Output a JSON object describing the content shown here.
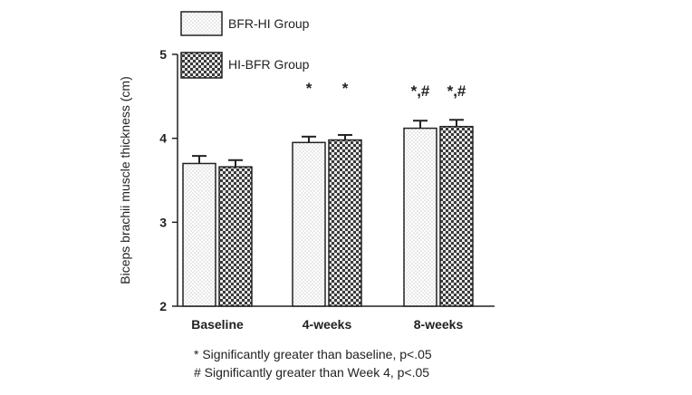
{
  "chart_data": {
    "type": "bar",
    "ylabel": "Biceps brachii muscle thickness (cm)",
    "xlabel": "",
    "ylim": [
      2,
      5
    ],
    "yticks": [
      "2",
      "3",
      "4",
      "5"
    ],
    "categories": [
      "Baseline",
      "4-weeks",
      "8-weeks"
    ],
    "series": [
      {
        "name": "BFR-HI Group",
        "pattern": "dotted",
        "values": [
          3.7,
          3.95,
          4.12
        ],
        "errors": [
          0.09,
          0.07,
          0.09
        ]
      },
      {
        "name": "HI-BFR Group",
        "pattern": "checkered",
        "values": [
          3.66,
          3.98,
          4.14
        ],
        "errors": [
          0.08,
          0.06,
          0.08
        ]
      }
    ],
    "annotations": [
      [
        "",
        ""
      ],
      [
        "*",
        "*"
      ],
      [
        "*,#",
        "*,#"
      ]
    ],
    "legend_position": "top-left",
    "grid": false
  },
  "footnotes": [
    "* Significantly greater than baseline, p<.05",
    "# Significantly greater than Week 4, p<.05"
  ],
  "colors": {
    "axis": "#222222",
    "bar_fill": "#ffffff",
    "pattern_dark": "#3a3a3a",
    "dots": "#b5b5b5"
  }
}
